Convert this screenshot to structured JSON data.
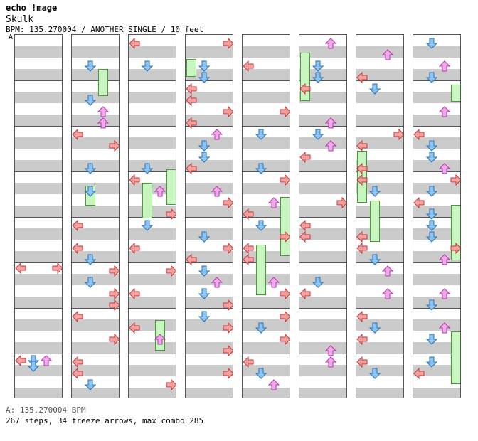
{
  "title": "echo !mage",
  "song": "Skulk",
  "meta": "BPM: 135.270004 / ANOTHER SINGLE / 10 feet",
  "bpm_marker": "A",
  "footer_bpm": "A: 135.270004 BPM",
  "footer_stats": "267 steps, 34 freeze arrows, max combo 285",
  "colors": {
    "left_right": "#f4a0a0",
    "down_blue": "#8cc4f5",
    "up_pink": "#f3a8f0",
    "freeze": "#c8f5c0",
    "band": "#cbcbcb"
  }
}
